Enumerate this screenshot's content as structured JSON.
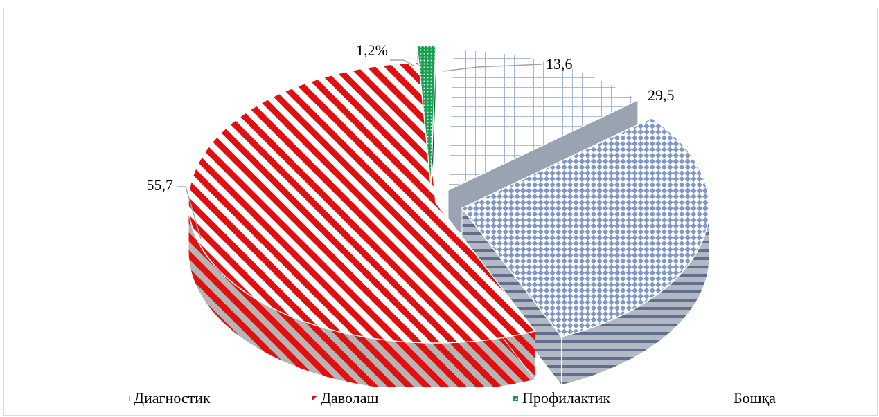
{
  "chart_data": {
    "type": "pie",
    "title": "",
    "categories": [
      "Диагностик",
      "Даволаш",
      "Профилактик",
      "Бошқа"
    ],
    "values": [
      13.6,
      55.7,
      1.2,
      29.5
    ],
    "data_labels": [
      "13,6",
      "55,7",
      "1,2%",
      "29,5"
    ],
    "colors": [
      "#8fa6cf",
      "#e01010",
      "#1a9e52",
      "#6f8cc0"
    ],
    "legend_position": "bottom"
  },
  "legend": {
    "items": [
      {
        "label": "Диагностик",
        "color": "#8fa6cf"
      },
      {
        "label": "Даволаш",
        "color": "#e01010"
      },
      {
        "label": "Профилактик",
        "color": "#1a9e52"
      },
      {
        "label": "Бошқа",
        "color": "#ffffff"
      }
    ]
  }
}
